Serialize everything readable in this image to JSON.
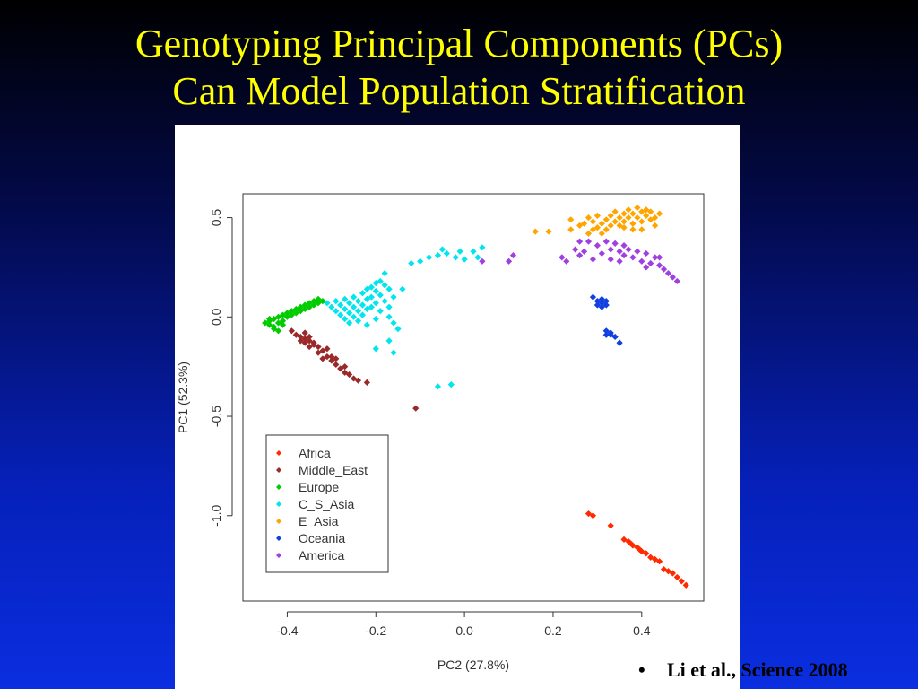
{
  "slide": {
    "title_line1": "Genotyping Principal Components (PCs)",
    "title_line2": "Can Model Population Stratification",
    "citation_bullet": "•",
    "citation": "Li et al., Science 2008"
  },
  "chart_data": {
    "type": "scatter",
    "xlabel": "PC2 (27.8%)",
    "ylabel": "PC1 (52.3%)",
    "xlim": [
      -0.5,
      0.54
    ],
    "ylim": [
      -1.43,
      0.62
    ],
    "xticks": [
      -0.4,
      -0.2,
      0.0,
      0.2,
      0.4
    ],
    "xtick_labels": [
      "-0.4",
      "-0.2",
      "0.0",
      "0.2",
      "0.4"
    ],
    "yticks": [
      0.5,
      0.0,
      -0.5,
      -1.0
    ],
    "ytick_labels": [
      "0.5",
      "0.0",
      "-0.5",
      "-1.0"
    ],
    "grid": false,
    "legend_position": "bottom-left",
    "series": [
      {
        "name": "Africa",
        "color": "#ff2a00",
        "points": [
          [
            0.28,
            -0.99
          ],
          [
            0.29,
            -1.0
          ],
          [
            0.33,
            -1.05
          ],
          [
            0.36,
            -1.12
          ],
          [
            0.37,
            -1.13
          ],
          [
            0.38,
            -1.15
          ],
          [
            0.39,
            -1.16
          ],
          [
            0.4,
            -1.18
          ],
          [
            0.41,
            -1.19
          ],
          [
            0.42,
            -1.21
          ],
          [
            0.43,
            -1.22
          ],
          [
            0.45,
            -1.27
          ],
          [
            0.46,
            -1.28
          ],
          [
            0.47,
            -1.29
          ],
          [
            0.48,
            -1.31
          ],
          [
            0.49,
            -1.33
          ],
          [
            0.5,
            -1.35
          ],
          [
            0.44,
            -1.23
          ],
          [
            0.395,
            -1.17
          ],
          [
            0.375,
            -1.14
          ]
        ]
      },
      {
        "name": "Middle_East",
        "color": "#9a2a2a",
        "points": [
          [
            -0.39,
            -0.07
          ],
          [
            -0.38,
            -0.09
          ],
          [
            -0.37,
            -0.1
          ],
          [
            -0.36,
            -0.11
          ],
          [
            -0.35,
            -0.12
          ],
          [
            -0.34,
            -0.13
          ],
          [
            -0.33,
            -0.15
          ],
          [
            -0.32,
            -0.17
          ],
          [
            -0.31,
            -0.2
          ],
          [
            -0.3,
            -0.22
          ],
          [
            -0.29,
            -0.24
          ],
          [
            -0.28,
            -0.26
          ],
          [
            -0.27,
            -0.28
          ],
          [
            -0.26,
            -0.29
          ],
          [
            -0.25,
            -0.31
          ],
          [
            -0.24,
            -0.32
          ],
          [
            -0.22,
            -0.33
          ],
          [
            -0.36,
            -0.08
          ],
          [
            -0.35,
            -0.1
          ],
          [
            -0.34,
            -0.14
          ],
          [
            -0.33,
            -0.18
          ],
          [
            -0.31,
            -0.16
          ],
          [
            -0.29,
            -0.21
          ],
          [
            -0.27,
            -0.25
          ],
          [
            -0.35,
            -0.15
          ],
          [
            -0.36,
            -0.13
          ],
          [
            -0.32,
            -0.21
          ],
          [
            -0.3,
            -0.2
          ],
          [
            -0.11,
            -0.46
          ],
          [
            -0.37,
            -0.12
          ]
        ]
      },
      {
        "name": "Europe",
        "color": "#00cc00",
        "points": [
          [
            -0.45,
            -0.03
          ],
          [
            -0.44,
            -0.04
          ],
          [
            -0.44,
            -0.02
          ],
          [
            -0.43,
            -0.01
          ],
          [
            -0.43,
            -0.05
          ],
          [
            -0.42,
            0.0
          ],
          [
            -0.42,
            -0.03
          ],
          [
            -0.41,
            0.01
          ],
          [
            -0.41,
            -0.02
          ],
          [
            -0.4,
            0.02
          ],
          [
            -0.4,
            0.0
          ],
          [
            -0.39,
            0.03
          ],
          [
            -0.39,
            0.01
          ],
          [
            -0.38,
            0.04
          ],
          [
            -0.38,
            0.02
          ],
          [
            -0.37,
            0.05
          ],
          [
            -0.37,
            0.03
          ],
          [
            -0.36,
            0.06
          ],
          [
            -0.36,
            0.04
          ],
          [
            -0.35,
            0.07
          ],
          [
            -0.35,
            0.05
          ],
          [
            -0.34,
            0.08
          ],
          [
            -0.34,
            0.06
          ],
          [
            -0.33,
            0.09
          ],
          [
            -0.33,
            0.07
          ],
          [
            -0.32,
            0.08
          ],
          [
            -0.43,
            -0.06
          ],
          [
            -0.42,
            -0.07
          ],
          [
            -0.44,
            -0.01
          ],
          [
            -0.41,
            -0.04
          ]
        ]
      },
      {
        "name": "C_S_Asia",
        "color": "#00e5ee",
        "points": [
          [
            -0.31,
            0.07
          ],
          [
            -0.3,
            0.05
          ],
          [
            -0.29,
            0.08
          ],
          [
            -0.29,
            0.03
          ],
          [
            -0.28,
            0.06
          ],
          [
            -0.28,
            0.01
          ],
          [
            -0.27,
            0.09
          ],
          [
            -0.27,
            0.04
          ],
          [
            -0.27,
            -0.01
          ],
          [
            -0.26,
            0.07
          ],
          [
            -0.26,
            0.02
          ],
          [
            -0.26,
            -0.03
          ],
          [
            -0.25,
            0.1
          ],
          [
            -0.25,
            0.05
          ],
          [
            -0.25,
            0.0
          ],
          [
            -0.24,
            0.08
          ],
          [
            -0.24,
            0.03
          ],
          [
            -0.24,
            -0.02
          ],
          [
            -0.23,
            0.12
          ],
          [
            -0.23,
            0.06
          ],
          [
            -0.23,
            0.01
          ],
          [
            -0.22,
            0.14
          ],
          [
            -0.22,
            0.09
          ],
          [
            -0.22,
            0.04
          ],
          [
            -0.22,
            -0.04
          ],
          [
            -0.21,
            0.15
          ],
          [
            -0.21,
            0.1
          ],
          [
            -0.21,
            0.05
          ],
          [
            -0.2,
            0.17
          ],
          [
            -0.2,
            0.13
          ],
          [
            -0.2,
            0.07
          ],
          [
            -0.2,
            -0.01
          ],
          [
            -0.19,
            0.18
          ],
          [
            -0.19,
            0.11
          ],
          [
            -0.19,
            0.03
          ],
          [
            -0.18,
            0.22
          ],
          [
            -0.18,
            0.16
          ],
          [
            -0.18,
            0.08
          ],
          [
            -0.17,
            0.14
          ],
          [
            -0.17,
            0.05
          ],
          [
            -0.17,
            0.0
          ],
          [
            -0.16,
            0.1
          ],
          [
            -0.16,
            -0.03
          ],
          [
            -0.15,
            -0.06
          ],
          [
            -0.14,
            0.14
          ],
          [
            -0.2,
            -0.16
          ],
          [
            -0.17,
            -0.12
          ],
          [
            -0.16,
            -0.18
          ],
          [
            -0.06,
            -0.35
          ],
          [
            -0.03,
            -0.34
          ],
          [
            -0.1,
            0.28
          ],
          [
            -0.08,
            0.3
          ],
          [
            -0.06,
            0.31
          ],
          [
            -0.04,
            0.32
          ],
          [
            -0.02,
            0.3
          ],
          [
            -0.01,
            0.33
          ],
          [
            0.0,
            0.29
          ],
          [
            0.02,
            0.33
          ],
          [
            0.03,
            0.3
          ],
          [
            0.04,
            0.35
          ],
          [
            -0.05,
            0.34
          ],
          [
            -0.12,
            0.27
          ]
        ]
      },
      {
        "name": "E_Asia",
        "color": "#ffa500",
        "points": [
          [
            0.16,
            0.43
          ],
          [
            0.19,
            0.43
          ],
          [
            0.24,
            0.44
          ],
          [
            0.24,
            0.49
          ],
          [
            0.26,
            0.46
          ],
          [
            0.28,
            0.5
          ],
          [
            0.28,
            0.42
          ],
          [
            0.29,
            0.48
          ],
          [
            0.3,
            0.45
          ],
          [
            0.3,
            0.51
          ],
          [
            0.31,
            0.47
          ],
          [
            0.31,
            0.42
          ],
          [
            0.32,
            0.49
          ],
          [
            0.32,
            0.44
          ],
          [
            0.33,
            0.51
          ],
          [
            0.34,
            0.48
          ],
          [
            0.34,
            0.53
          ],
          [
            0.35,
            0.5
          ],
          [
            0.35,
            0.46
          ],
          [
            0.36,
            0.52
          ],
          [
            0.36,
            0.48
          ],
          [
            0.37,
            0.54
          ],
          [
            0.37,
            0.5
          ],
          [
            0.38,
            0.52
          ],
          [
            0.38,
            0.47
          ],
          [
            0.39,
            0.55
          ],
          [
            0.39,
            0.5
          ],
          [
            0.4,
            0.53
          ],
          [
            0.4,
            0.48
          ],
          [
            0.41,
            0.51
          ],
          [
            0.41,
            0.54
          ],
          [
            0.42,
            0.49
          ],
          [
            0.42,
            0.53
          ],
          [
            0.43,
            0.5
          ],
          [
            0.43,
            0.46
          ],
          [
            0.38,
            0.44
          ],
          [
            0.33,
            0.46
          ],
          [
            0.29,
            0.44
          ],
          [
            0.27,
            0.47
          ],
          [
            0.44,
            0.52
          ],
          [
            0.36,
            0.45
          ],
          [
            0.4,
            0.44
          ]
        ]
      },
      {
        "name": "Oceania",
        "color": "#1040e0",
        "points": [
          [
            0.29,
            0.1
          ],
          [
            0.3,
            0.08
          ],
          [
            0.3,
            0.06
          ],
          [
            0.31,
            0.09
          ],
          [
            0.31,
            0.07
          ],
          [
            0.32,
            0.06
          ],
          [
            0.32,
            0.08
          ],
          [
            0.31,
            0.05
          ],
          [
            0.32,
            -0.07
          ],
          [
            0.33,
            -0.08
          ],
          [
            0.33,
            -0.09
          ],
          [
            0.34,
            -0.1
          ],
          [
            0.35,
            -0.13
          ],
          [
            0.32,
            -0.09
          ]
        ]
      },
      {
        "name": "America",
        "color": "#a040e0",
        "points": [
          [
            0.04,
            0.28
          ],
          [
            0.1,
            0.28
          ],
          [
            0.11,
            0.31
          ],
          [
            0.22,
            0.3
          ],
          [
            0.23,
            0.28
          ],
          [
            0.25,
            0.34
          ],
          [
            0.26,
            0.38
          ],
          [
            0.27,
            0.33
          ],
          [
            0.28,
            0.38
          ],
          [
            0.29,
            0.29
          ],
          [
            0.3,
            0.36
          ],
          [
            0.31,
            0.32
          ],
          [
            0.32,
            0.38
          ],
          [
            0.33,
            0.34
          ],
          [
            0.33,
            0.29
          ],
          [
            0.34,
            0.37
          ],
          [
            0.35,
            0.33
          ],
          [
            0.36,
            0.31
          ],
          [
            0.36,
            0.36
          ],
          [
            0.37,
            0.34
          ],
          [
            0.38,
            0.3
          ],
          [
            0.39,
            0.33
          ],
          [
            0.4,
            0.28
          ],
          [
            0.41,
            0.32
          ],
          [
            0.42,
            0.27
          ],
          [
            0.43,
            0.3
          ],
          [
            0.44,
            0.26
          ],
          [
            0.45,
            0.24
          ],
          [
            0.46,
            0.22
          ],
          [
            0.47,
            0.2
          ],
          [
            0.48,
            0.18
          ],
          [
            0.44,
            0.3
          ],
          [
            0.41,
            0.25
          ],
          [
            0.26,
            0.31
          ],
          [
            0.35,
            0.28
          ]
        ]
      }
    ]
  }
}
